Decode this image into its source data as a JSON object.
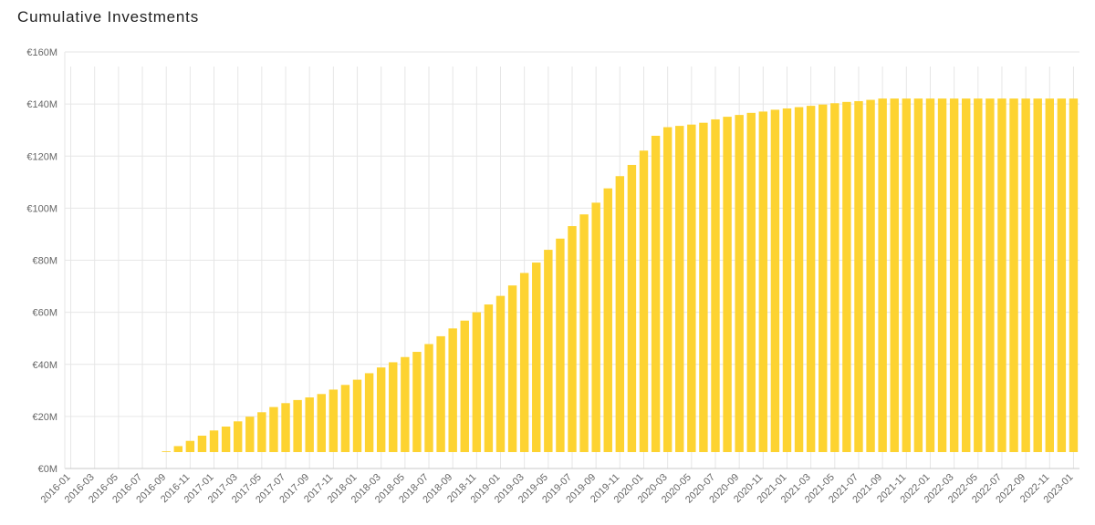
{
  "chart_data": {
    "type": "bar",
    "title": "Cumulative Investments",
    "xlabel": "",
    "ylabel": "",
    "ylim": [
      0,
      160
    ],
    "y_ticks": [
      0,
      20,
      40,
      60,
      80,
      100,
      120,
      140,
      160
    ],
    "y_tick_labels": [
      "€0M",
      "€20M",
      "€40M",
      "€60M",
      "€80M",
      "€100M",
      "€120M",
      "€140M",
      "€160M"
    ],
    "y_unit": "€M",
    "bar_color": "#FDD331",
    "grid": true,
    "legend": "none",
    "categories": [
      "2016-01",
      "2016-02",
      "2016-03",
      "2016-04",
      "2016-05",
      "2016-06",
      "2016-07",
      "2016-08",
      "2016-09",
      "2016-10",
      "2016-11",
      "2016-12",
      "2017-01",
      "2017-02",
      "2017-03",
      "2017-04",
      "2017-05",
      "2017-06",
      "2017-07",
      "2017-08",
      "2017-09",
      "2017-10",
      "2017-11",
      "2017-12",
      "2018-01",
      "2018-02",
      "2018-03",
      "2018-04",
      "2018-05",
      "2018-06",
      "2018-07",
      "2018-08",
      "2018-09",
      "2018-10",
      "2018-11",
      "2018-12",
      "2019-01",
      "2019-02",
      "2019-03",
      "2019-04",
      "2019-05",
      "2019-06",
      "2019-07",
      "2019-08",
      "2019-09",
      "2019-10",
      "2019-11",
      "2019-12",
      "2020-01",
      "2020-02",
      "2020-03",
      "2020-04",
      "2020-05",
      "2020-06",
      "2020-07",
      "2020-08",
      "2020-09",
      "2020-10",
      "2020-11",
      "2020-12",
      "2021-01",
      "2021-02",
      "2021-03",
      "2021-04",
      "2021-05",
      "2021-06",
      "2021-07",
      "2021-08",
      "2021-09",
      "2021-10",
      "2021-11",
      "2021-12",
      "2022-01",
      "2022-02",
      "2022-03",
      "2022-04",
      "2022-05",
      "2022-06",
      "2022-07",
      "2022-08",
      "2022-09",
      "2022-10",
      "2022-11",
      "2022-12",
      "2023-01"
    ],
    "x_tick_labels": [
      "2016-01",
      "2016-03",
      "2016-05",
      "2016-07",
      "2016-09",
      "2016-11",
      "2017-01",
      "2017-03",
      "2017-05",
      "2017-07",
      "2017-09",
      "2017-11",
      "2018-01",
      "2018-03",
      "2018-05",
      "2018-07",
      "2018-09",
      "2018-11",
      "2019-01",
      "2019-03",
      "2019-05",
      "2019-07",
      "2019-09",
      "2019-11",
      "2020-01",
      "2020-03",
      "2020-05",
      "2020-07",
      "2020-09",
      "2020-11",
      "2021-01",
      "2021-03",
      "2021-05",
      "2021-07",
      "2021-09",
      "2021-11",
      "2022-01",
      "2022-03",
      "2022-05",
      "2022-07",
      "2022-09",
      "2022-11",
      "2023-01"
    ],
    "values": [
      0,
      0,
      0,
      0,
      0,
      0,
      0,
      0,
      0.3,
      2.3,
      4.3,
      6.3,
      8.3,
      9.8,
      11.8,
      13.6,
      15.3,
      17.3,
      18.8,
      20.0,
      21.0,
      22.3,
      24.0,
      25.8,
      27.8,
      30.3,
      32.5,
      34.5,
      36.5,
      38.5,
      41.5,
      44.5,
      47.5,
      50.5,
      53.7,
      56.7,
      60.0,
      64.0,
      68.8,
      72.8,
      77.7,
      82.0,
      86.8,
      91.3,
      95.8,
      101.3,
      106.0,
      110.3,
      115.8,
      121.5,
      124.8,
      125.3,
      125.8,
      126.5,
      127.8,
      128.8,
      129.5,
      130.3,
      130.8,
      131.5,
      132.0,
      132.5,
      133.0,
      133.5,
      134.0,
      134.5,
      134.8,
      135.3,
      135.8,
      135.8,
      135.8,
      135.8,
      135.8,
      135.8,
      135.8,
      135.8,
      135.8,
      135.8,
      135.8,
      135.8,
      135.8,
      135.8,
      135.8,
      135.8,
      135.8
    ]
  }
}
